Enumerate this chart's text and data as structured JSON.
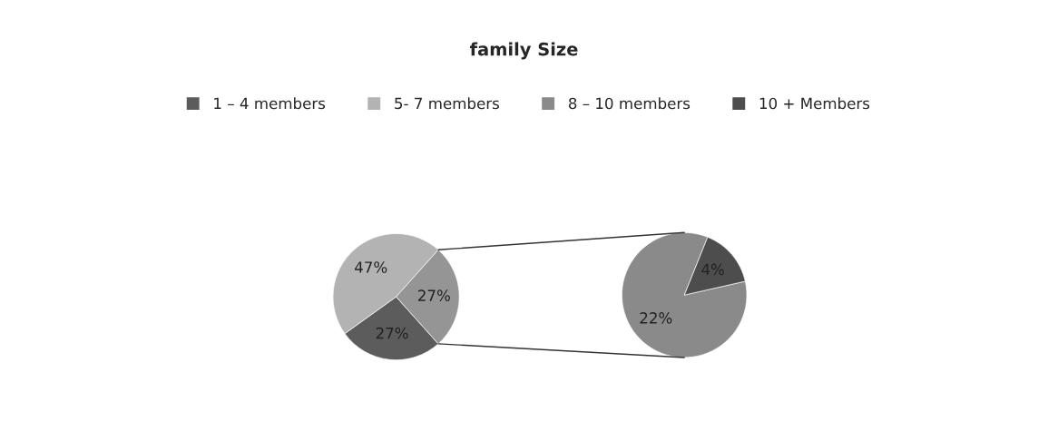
{
  "chart_data": [
    {
      "type": "pie",
      "title": "family Size",
      "categories": [
        "1 – 4 members",
        "5- 7 members",
        null
      ],
      "values": [
        27,
        47,
        27
      ],
      "value_labels": [
        "27%",
        "47%",
        "27%"
      ],
      "colors": [
        "#5c5c5c",
        "#b3b3b3",
        "#959595"
      ],
      "legend": "top"
    },
    {
      "type": "pie",
      "categories": [
        "8 – 10 members",
        "10 + Members"
      ],
      "values": [
        22,
        4
      ],
      "value_labels": [
        "22%",
        "4%"
      ],
      "colors": [
        "#8a8a8a",
        "#4d4d4d"
      ],
      "legend": "top"
    }
  ]
}
